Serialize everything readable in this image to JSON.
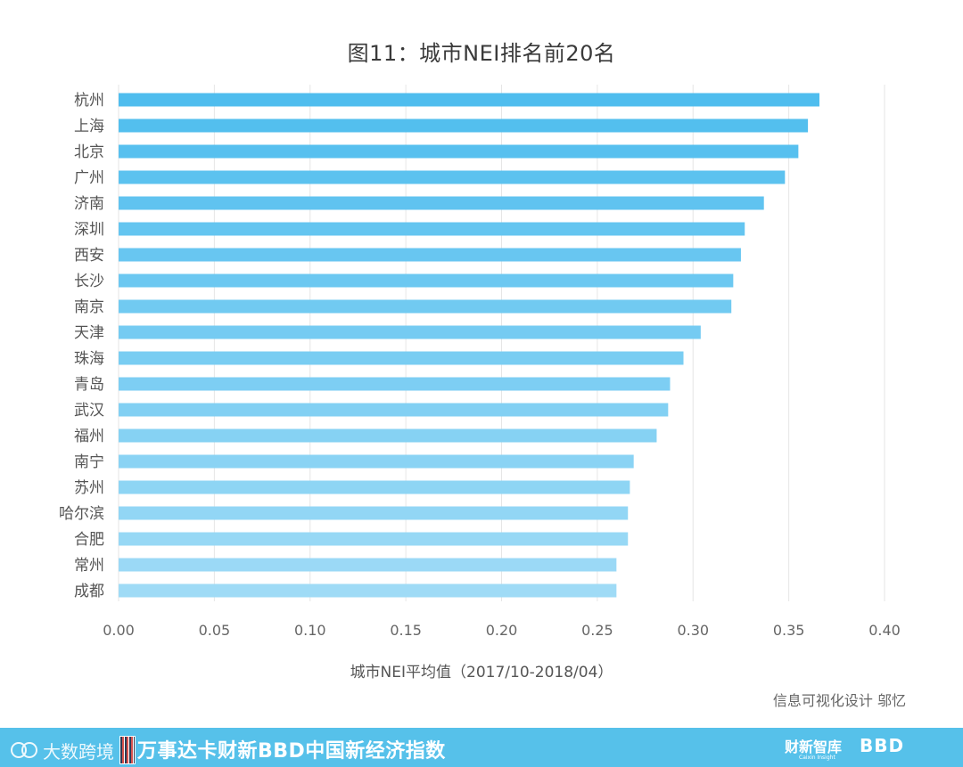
{
  "chart_data": {
    "type": "bar",
    "orientation": "horizontal",
    "title": "图11：城市NEI排名前20名",
    "xlabel": "城市NEI平均值（2017/10-2018/04）",
    "ylabel": "",
    "xlim": [
      0,
      0.4
    ],
    "x_ticks": [
      "0.00",
      "0.05",
      "0.10",
      "0.15",
      "0.20",
      "0.25",
      "0.30",
      "0.35",
      "0.40"
    ],
    "grid": "vertical",
    "categories": [
      "杭州",
      "上海",
      "北京",
      "广州",
      "济南",
      "深圳",
      "西安",
      "长沙",
      "南京",
      "天津",
      "珠海",
      "青岛",
      "武汉",
      "福州",
      "南宁",
      "苏州",
      "哈尔滨",
      "合肥",
      "常州",
      "成都"
    ],
    "values": [
      0.366,
      0.36,
      0.355,
      0.348,
      0.337,
      0.327,
      0.325,
      0.321,
      0.32,
      0.304,
      0.295,
      0.288,
      0.287,
      0.281,
      0.269,
      0.267,
      0.266,
      0.266,
      0.26,
      0.26
    ],
    "colors": {
      "top": "#4fbdee",
      "bottom": "#9fdbf6",
      "grid": "#e6e6e6",
      "tick_text": "#666666"
    }
  },
  "credit": "信息可视化设计 邬忆",
  "footer": {
    "brand": "大数跨境",
    "index_name": "万事达卡财新BBD中国新经济指数",
    "caixin_logo": "财新智库",
    "caixin_logo_sub": "Caixin Insight",
    "bbd_logo": "BBD",
    "background": "#56c1ea"
  }
}
